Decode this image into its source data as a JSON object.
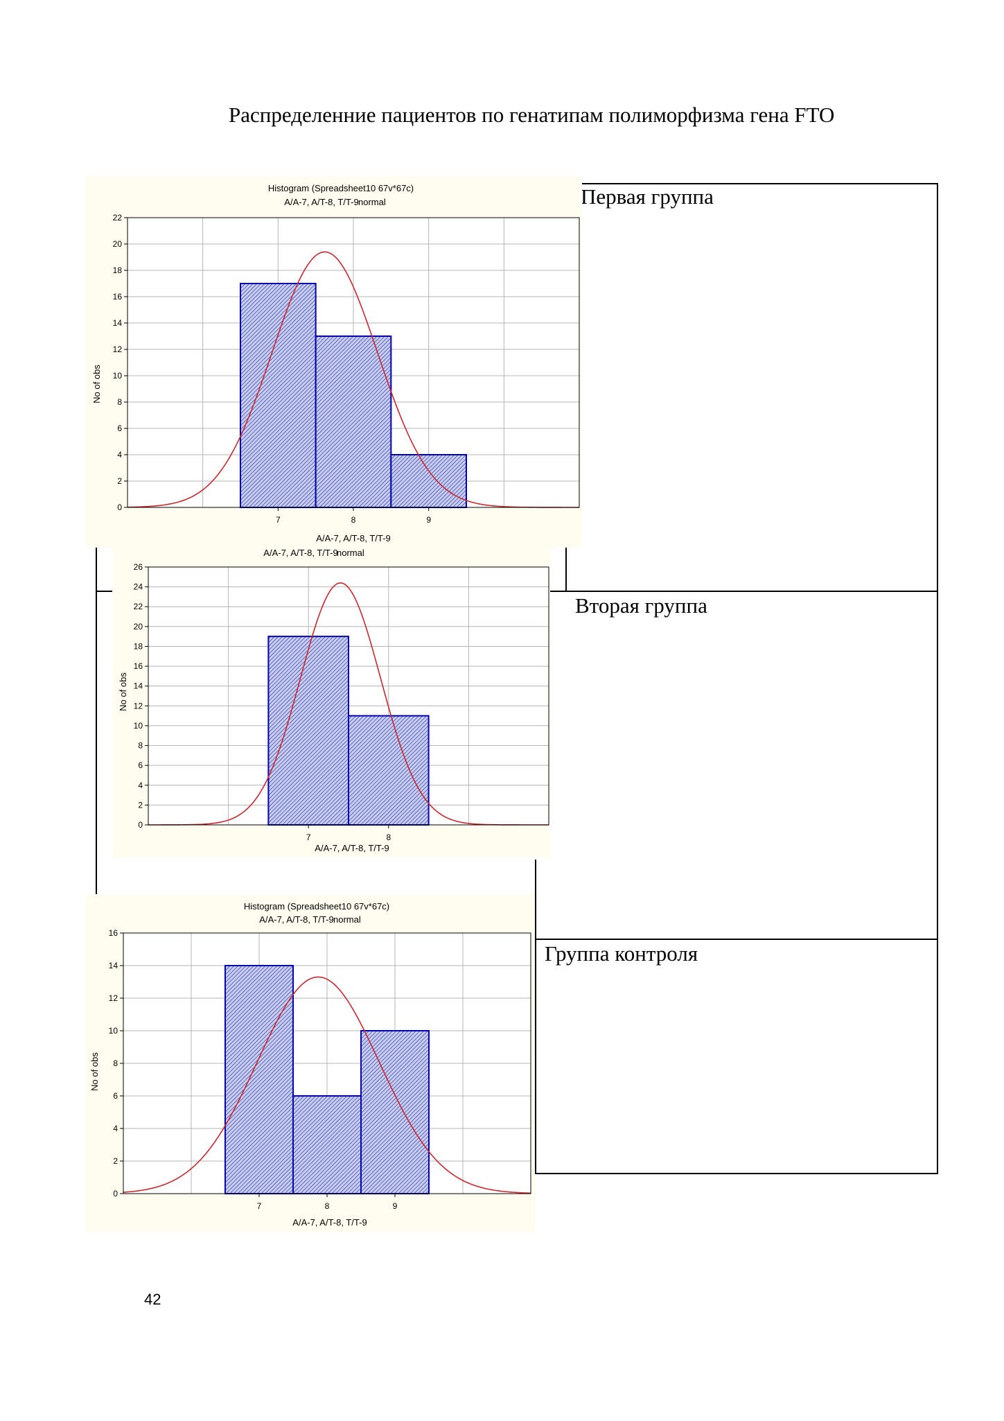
{
  "page": {
    "title": "Распределенние пациентов по генатипам полиморфизма гена FTO",
    "page_number": "42"
  },
  "groups": [
    {
      "label": "Первая группа"
    },
    {
      "label": "Вторая группа"
    },
    {
      "label": "Группа контроля"
    }
  ],
  "colors": {
    "bar_fill": "#c8cfee",
    "bar_hatch": "#1a1aa8",
    "bar_stroke": "#0000b0",
    "curve": "#c8282e",
    "panel_bg": "#fffcf0",
    "grid": "#b4b4b4"
  },
  "chart_data": [
    {
      "type": "bar",
      "title": "Histogram (Spreadsheet10 67v*67c)",
      "subtitle": "A/A-7, A/T-8, T/T-9",
      "legend": "normal",
      "xlabel": "A/A-7, A/T-8, T/T-9",
      "ylabel": "No of obs",
      "categories": [
        "7",
        "8",
        "9"
      ],
      "values": [
        17,
        13,
        4
      ],
      "xlim": [
        5,
        11
      ],
      "ylim": [
        0,
        22
      ],
      "y_ticks": [
        0,
        2,
        4,
        6,
        8,
        10,
        12,
        14,
        16,
        18,
        20,
        22
      ],
      "grid": true,
      "fit": {
        "type": "normal",
        "mean": 7.62,
        "sd": 0.7,
        "peak": 19.4
      }
    },
    {
      "type": "bar",
      "title": "",
      "subtitle": "A/A-7, A/T-8, T/T-9",
      "legend": "normal",
      "xlabel": "A/A-7, A/T-8, T/T-9",
      "ylabel": "No of obs",
      "categories": [
        "7",
        "8"
      ],
      "values": [
        19,
        11
      ],
      "xlim": [
        5,
        10
      ],
      "ylim": [
        0,
        26
      ],
      "y_ticks": [
        0,
        2,
        4,
        6,
        8,
        10,
        12,
        14,
        16,
        18,
        20,
        22,
        24,
        26
      ],
      "grid": true,
      "fit": {
        "type": "normal",
        "mean": 7.4,
        "sd": 0.5,
        "peak": 24.4
      }
    },
    {
      "type": "bar",
      "title": "Histogram (Spreadsheet10 67v*67c)",
      "subtitle": "A/A-7, A/T-8, T/T-9",
      "legend": "normal",
      "xlabel": "A/A-7, A/T-8, T/T-9",
      "ylabel": "No of obs",
      "categories": [
        "7",
        "8",
        "9"
      ],
      "values": [
        14,
        6,
        10
      ],
      "xlim": [
        5,
        11
      ],
      "ylim": [
        0,
        16
      ],
      "y_ticks": [
        0,
        2,
        4,
        6,
        8,
        10,
        12,
        14,
        16
      ],
      "grid": true,
      "fit": {
        "type": "normal",
        "mean": 7.87,
        "sd": 0.9,
        "peak": 13.3
      }
    }
  ]
}
